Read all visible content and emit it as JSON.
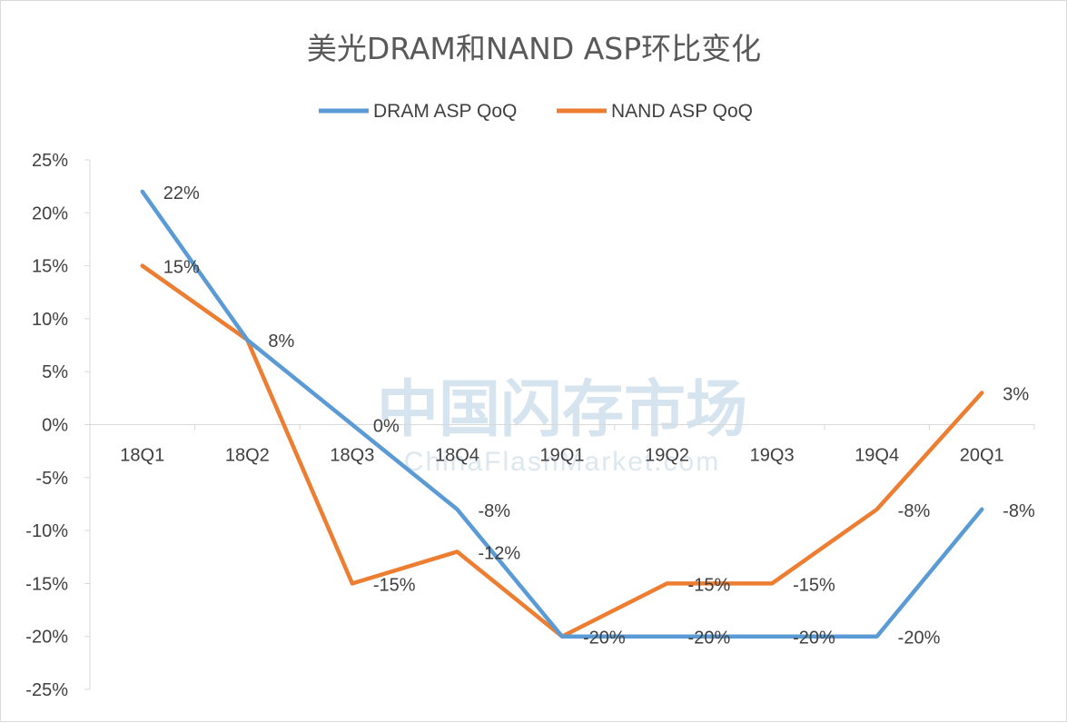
{
  "watermark": {
    "cn": "中国闪存市场",
    "en": "ChinaFlashMarket.com"
  },
  "chart_data": {
    "type": "line",
    "title": "美光DRAM和NAND ASP环比变化",
    "xlabel": "",
    "ylabel": "",
    "categories": [
      "18Q1",
      "18Q2",
      "18Q3",
      "18Q4",
      "19Q1",
      "19Q2",
      "19Q3",
      "19Q4",
      "20Q1"
    ],
    "ylim": [
      -25,
      25
    ],
    "yticks": [
      25,
      20,
      15,
      10,
      5,
      0,
      -5,
      -10,
      -15,
      -20,
      -25
    ],
    "ytick_labels": [
      "25%",
      "20%",
      "15%",
      "10%",
      "5%",
      "0%",
      "-5%",
      "-10%",
      "-15%",
      "-20%",
      "-25%"
    ],
    "grid": false,
    "legend_position": "top",
    "series": [
      {
        "name": "DRAM ASP QoQ",
        "color": "#5b9bd5",
        "values": [
          22,
          8,
          0,
          -8,
          -20,
          -20,
          -20,
          -20,
          -8
        ],
        "labels": [
          "22%",
          "8%",
          "0%",
          "-8%",
          "-20%",
          "-20%",
          "-20%",
          "-20%",
          "-8%"
        ]
      },
      {
        "name": "NAND ASP QoQ",
        "color": "#ed7d31",
        "values": [
          15,
          8,
          -15,
          -12,
          -20,
          -15,
          -15,
          -8,
          3
        ],
        "labels": [
          "15%",
          "",
          "-15%",
          "-12%",
          "",
          "-15%",
          "-15%",
          "-8%",
          "3%"
        ]
      }
    ]
  }
}
